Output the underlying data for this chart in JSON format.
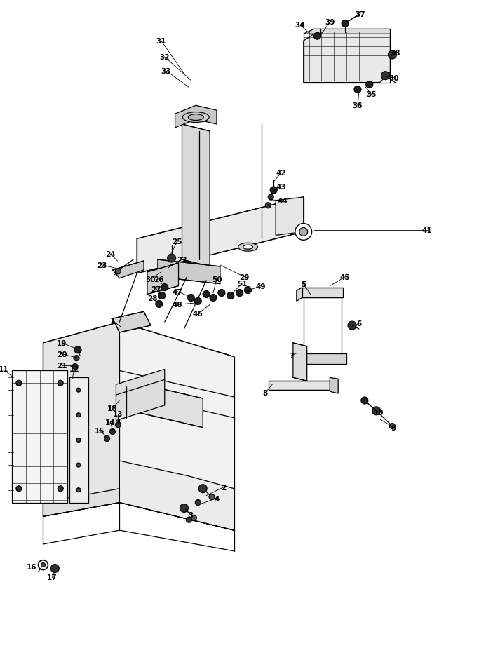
{
  "bg_color": "#ffffff",
  "fig_width": 7.03,
  "fig_height": 9.45,
  "lw": 0.9,
  "label_fs": 7.5
}
